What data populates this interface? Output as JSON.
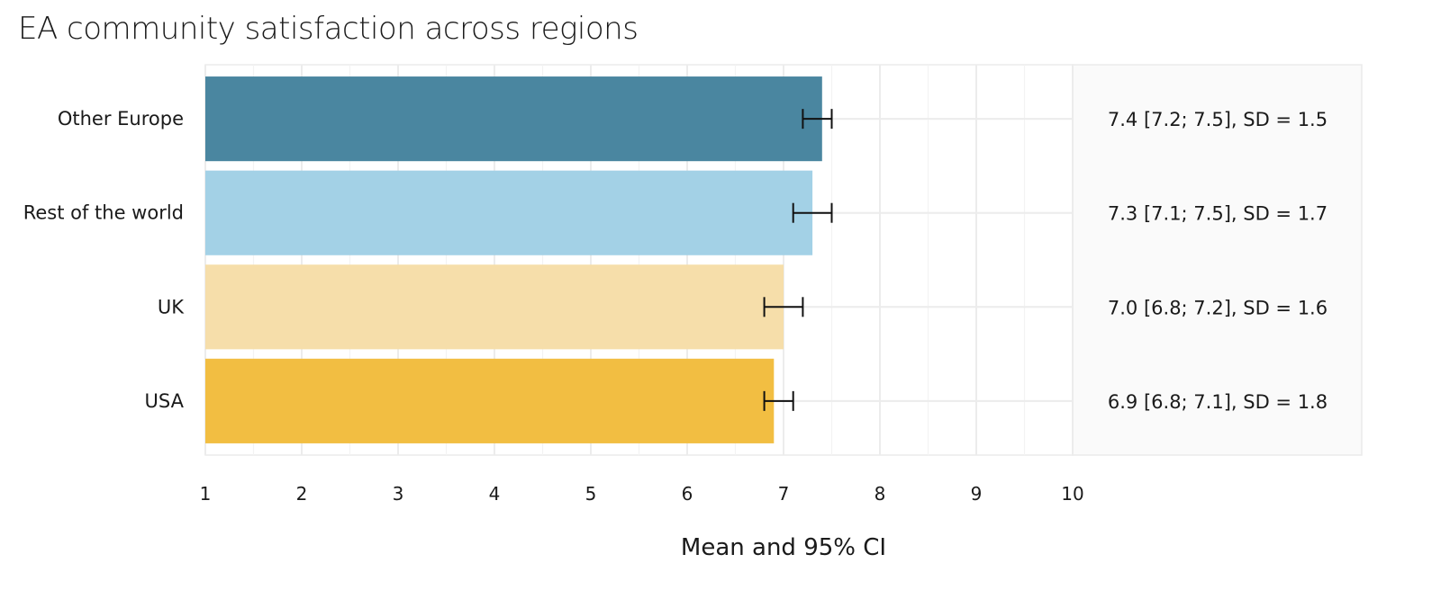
{
  "chart_data": {
    "type": "bar",
    "orientation": "horizontal",
    "title": "EA community satisfaction across regions",
    "xlabel": "Mean and 95% CI",
    "ylabel": "",
    "xlim": [
      1,
      10
    ],
    "x_ticks": [
      1,
      2,
      3,
      4,
      5,
      6,
      7,
      8,
      9,
      10
    ],
    "grid": true,
    "legend": "none",
    "categories": [
      "Other Europe",
      "Rest of the world",
      "UK",
      "USA"
    ],
    "values": [
      7.4,
      7.3,
      7.0,
      6.9
    ],
    "ci_lower": [
      7.2,
      7.1,
      6.8,
      6.8
    ],
    "ci_upper": [
      7.5,
      7.5,
      7.2,
      7.1
    ],
    "sd": [
      1.5,
      1.7,
      1.6,
      1.8
    ],
    "colors": [
      "#4a86a0",
      "#a3d1e6",
      "#f6deaa",
      "#f2be42"
    ],
    "stat_labels": [
      "7.4 [7.2; 7.5], SD = 1.5",
      "7.3 [7.1; 7.5], SD = 1.7",
      "7.0 [6.8; 7.2], SD = 1.6",
      "6.9 [6.8; 7.1], SD = 1.8"
    ]
  }
}
